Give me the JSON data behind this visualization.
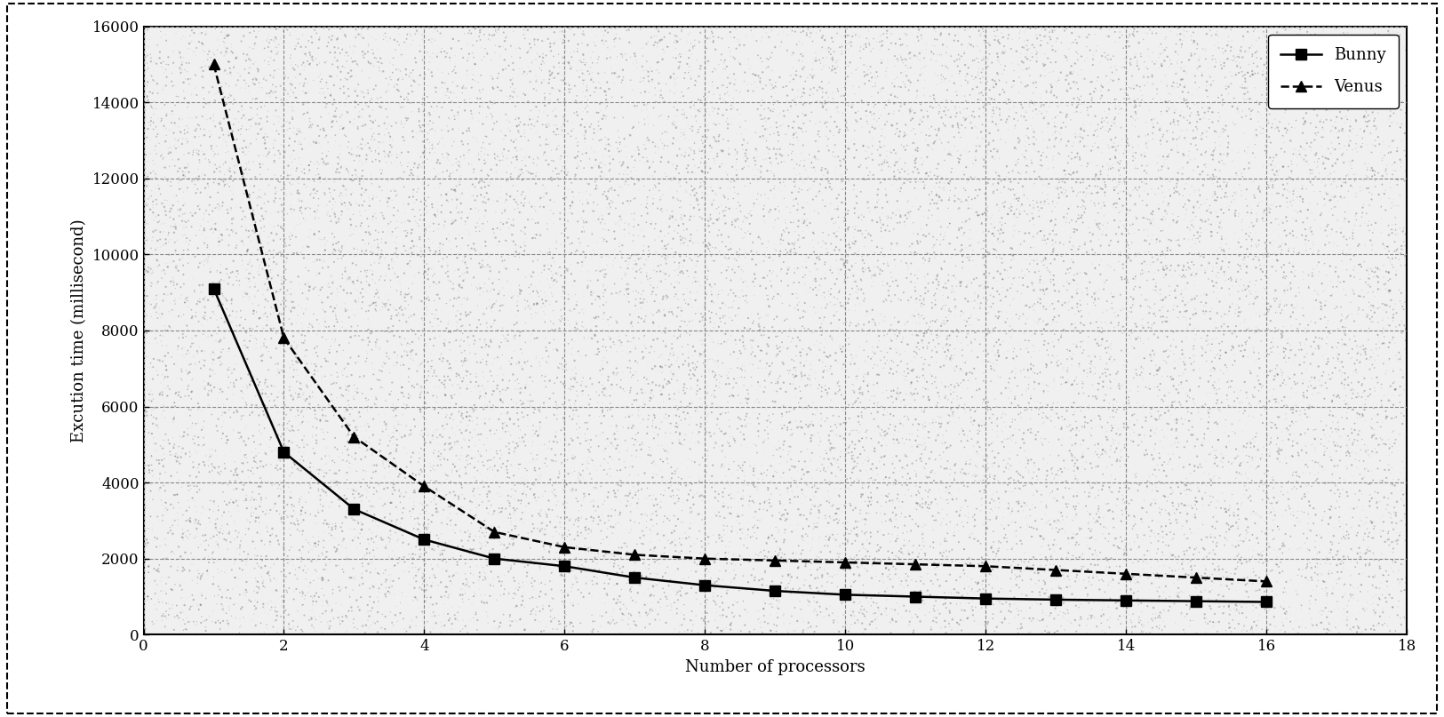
{
  "bunny_x": [
    1,
    2,
    3,
    4,
    5,
    6,
    7,
    8,
    9,
    10,
    11,
    12,
    13,
    14,
    15,
    16
  ],
  "bunny_y": [
    9100,
    4800,
    3300,
    2500,
    2000,
    1800,
    1500,
    1300,
    1150,
    1050,
    1000,
    950,
    920,
    900,
    880,
    860
  ],
  "venus_x": [
    1,
    2,
    3,
    4,
    5,
    6,
    7,
    8,
    9,
    10,
    11,
    12,
    13,
    14,
    15,
    16
  ],
  "venus_y": [
    15000,
    7800,
    5200,
    3900,
    2700,
    2300,
    2100,
    2000,
    1950,
    1900,
    1850,
    1800,
    1700,
    1600,
    1500,
    1400
  ],
  "xlabel": "Number of processors",
  "ylabel": "Excution time (millisecond)",
  "xlim": [
    0,
    18
  ],
  "ylim": [
    0,
    16000
  ],
  "yticks": [
    0,
    2000,
    4000,
    6000,
    8000,
    10000,
    12000,
    14000,
    16000
  ],
  "xticks": [
    0,
    2,
    4,
    6,
    8,
    10,
    12,
    14,
    16,
    18
  ],
  "line_color": "#000000",
  "legend_bunny": "Bunny",
  "legend_venus": "Venus",
  "grid_color": "#aaaaaa",
  "plot_bg_color": "#f0f0f0",
  "outer_bg_color": "#ffffff"
}
